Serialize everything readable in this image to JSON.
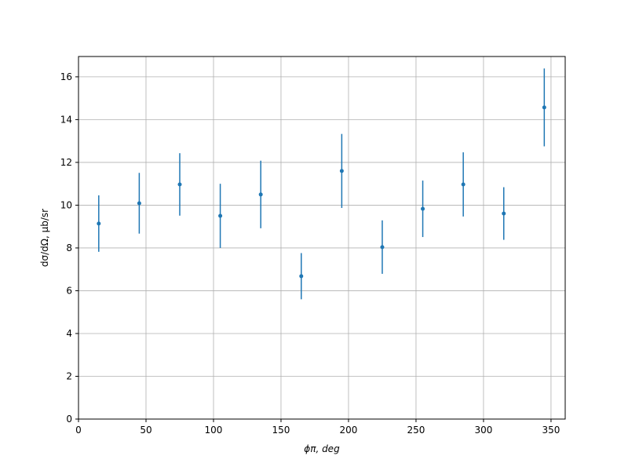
{
  "chart_data": {
    "type": "errorbar",
    "x_label": "ϕπ, deg",
    "y_label": "dσ/dΩ, μb/sr",
    "x": [
      15,
      45,
      75,
      105,
      135,
      165,
      195,
      225,
      255,
      285,
      315,
      345
    ],
    "series": [
      {
        "color": "#1f77b4",
        "values": [
          9.14,
          10.09,
          10.97,
          9.5,
          10.5,
          6.68,
          11.6,
          8.04,
          9.83,
          10.97,
          9.61,
          14.57
        ],
        "errors": [
          1.32,
          1.42,
          1.46,
          1.5,
          1.58,
          1.08,
          1.73,
          1.25,
          1.32,
          1.5,
          1.23,
          1.82
        ]
      }
    ],
    "xlim": [
      0,
      360.5
    ],
    "xticks": [
      0,
      50,
      100,
      150,
      200,
      250,
      300,
      350
    ],
    "ylim": [
      0,
      16.95
    ],
    "yticks": [
      0,
      2,
      4,
      6,
      8,
      10,
      12,
      14,
      16
    ],
    "grid": true
  }
}
